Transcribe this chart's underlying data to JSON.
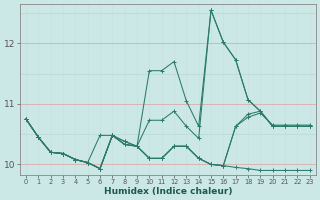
{
  "xlabel": "Humidex (Indice chaleur)",
  "bg_color": "#cce8e6",
  "grid_color_major": "#b8d8d5",
  "grid_color_red": "#e8b0b0",
  "line_color": "#2a7a6a",
  "xlim": [
    -0.5,
    23.5
  ],
  "ylim": [
    9.82,
    12.65
  ],
  "yticks": [
    10,
    11,
    12
  ],
  "lines": [
    {
      "y": [
        10.75,
        10.45,
        10.2,
        10.18,
        10.08,
        10.03,
        9.93,
        10.48,
        10.33,
        10.3,
        10.1,
        10.1,
        10.3,
        10.3,
        10.1,
        10.0,
        9.98,
        9.95,
        9.93,
        9.9,
        9.9,
        9.9,
        9.9,
        9.9
      ],
      "ls": "-"
    },
    {
      "y": [
        10.75,
        10.45,
        10.2,
        10.18,
        10.08,
        10.03,
        10.48,
        10.48,
        10.38,
        10.3,
        11.55,
        11.55,
        11.7,
        11.05,
        10.63,
        12.55,
        12.02,
        11.73,
        11.07,
        10.88,
        10.63,
        10.63,
        10.63,
        10.63
      ],
      "ls": "-"
    },
    {
      "y": [
        10.75,
        10.45,
        10.2,
        10.18,
        10.08,
        10.03,
        9.93,
        10.48,
        10.38,
        10.3,
        10.73,
        10.73,
        10.88,
        10.63,
        10.43,
        12.55,
        12.02,
        11.73,
        11.07,
        10.88,
        10.63,
        10.63,
        10.63,
        10.63
      ],
      "ls": "-"
    },
    {
      "y": [
        10.75,
        10.45,
        10.2,
        10.18,
        10.08,
        10.03,
        9.93,
        10.48,
        10.33,
        10.3,
        10.1,
        10.1,
        10.3,
        10.3,
        10.1,
        10.0,
        9.98,
        10.63,
        10.83,
        10.88,
        10.63,
        10.63,
        10.63,
        10.63
      ],
      "ls": "-"
    },
    {
      "y": [
        10.75,
        10.45,
        10.2,
        10.18,
        10.08,
        10.03,
        9.93,
        10.48,
        10.33,
        10.3,
        10.1,
        10.1,
        10.3,
        10.3,
        10.1,
        10.0,
        9.98,
        10.63,
        10.78,
        10.85,
        10.65,
        10.65,
        10.65,
        10.65
      ],
      "ls": "-"
    }
  ]
}
